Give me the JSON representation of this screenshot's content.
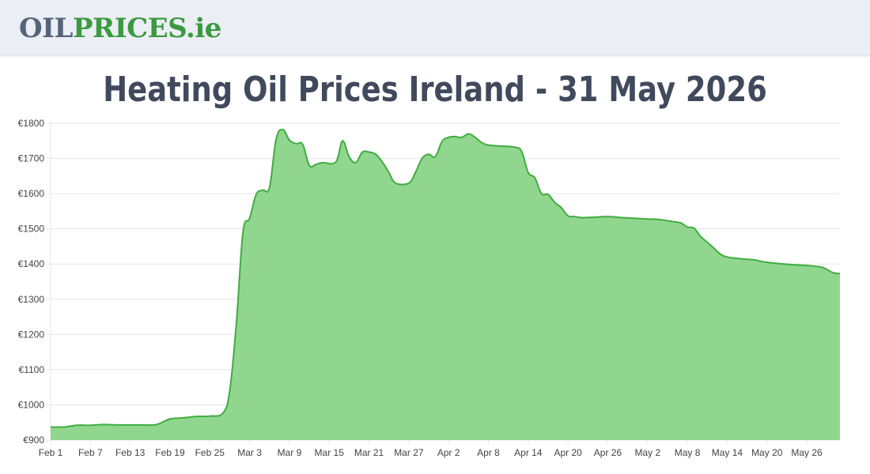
{
  "header": {
    "logo_oil": "OIL",
    "logo_prices": "PRICES",
    "logo_ie": ".ie"
  },
  "page": {
    "title": "Heating Oil Prices Ireland - 31 May 2026"
  },
  "colors": {
    "line": "#41ac41",
    "fill": "#90d68f",
    "grid": "#e6e6e6",
    "axis_text": "#444444"
  },
  "chart_data": {
    "type": "area",
    "title": "",
    "xlabel": "",
    "ylabel": "",
    "ylim": [
      900,
      1800
    ],
    "yticks": [
      900,
      1000,
      1100,
      1200,
      1300,
      1400,
      1500,
      1600,
      1700,
      1800
    ],
    "ytick_prefix": "€",
    "xtick_labels": [
      "Feb 1",
      "Feb 7",
      "Feb 13",
      "Feb 19",
      "Feb 25",
      "Mar 3",
      "Mar 9",
      "Mar 15",
      "Mar 21",
      "Mar 27",
      "Apr 2",
      "Apr 8",
      "Apr 14",
      "Apr 20",
      "Apr 26",
      "May 2",
      "May 8",
      "May 14",
      "May 20",
      "May 26"
    ],
    "grid": true,
    "legend": "none",
    "series": [
      {
        "x": [
          "2026-02-01",
          "2026-02-03",
          "2026-02-05",
          "2026-02-07",
          "2026-02-09",
          "2026-02-11",
          "2026-02-13",
          "2026-02-15",
          "2026-02-17",
          "2026-02-19",
          "2026-02-21",
          "2026-02-23",
          "2026-02-25",
          "2026-02-27",
          "2026-02-28",
          "2026-03-01",
          "2026-03-02",
          "2026-03-03",
          "2026-03-04",
          "2026-03-05",
          "2026-03-06",
          "2026-03-07",
          "2026-03-08",
          "2026-03-09",
          "2026-03-10",
          "2026-03-11",
          "2026-03-12",
          "2026-03-13",
          "2026-03-14",
          "2026-03-16",
          "2026-03-17",
          "2026-03-18",
          "2026-03-19",
          "2026-03-20",
          "2026-03-21",
          "2026-03-22",
          "2026-03-23",
          "2026-03-24",
          "2026-03-25",
          "2026-03-27",
          "2026-03-28",
          "2026-03-29",
          "2026-03-30",
          "2026-03-31",
          "2026-04-01",
          "2026-04-02",
          "2026-04-03",
          "2026-04-04",
          "2026-04-05",
          "2026-04-06",
          "2026-04-07",
          "2026-04-08",
          "2026-04-10",
          "2026-04-12",
          "2026-04-13",
          "2026-04-14",
          "2026-04-15",
          "2026-04-16",
          "2026-04-17",
          "2026-04-18",
          "2026-04-19",
          "2026-04-20",
          "2026-04-21",
          "2026-04-22",
          "2026-04-24",
          "2026-04-26",
          "2026-04-28",
          "2026-04-30",
          "2026-05-02",
          "2026-05-04",
          "2026-05-06",
          "2026-05-07",
          "2026-05-08",
          "2026-05-09",
          "2026-05-10",
          "2026-05-11",
          "2026-05-12",
          "2026-05-13",
          "2026-05-14",
          "2026-05-16",
          "2026-05-18",
          "2026-05-19",
          "2026-05-20",
          "2026-05-22",
          "2026-05-24",
          "2026-05-26",
          "2026-05-28",
          "2026-05-29",
          "2026-05-30",
          "2026-05-31"
        ],
        "values": [
          937,
          937,
          942,
          942,
          944,
          943,
          943,
          943,
          944,
          960,
          963,
          967,
          968,
          977,
          1040,
          1230,
          1490,
          1530,
          1598,
          1610,
          1618,
          1755,
          1782,
          1752,
          1742,
          1740,
          1680,
          1683,
          1688,
          1690,
          1750,
          1705,
          1688,
          1718,
          1718,
          1712,
          1690,
          1660,
          1630,
          1630,
          1660,
          1700,
          1712,
          1705,
          1748,
          1760,
          1762,
          1760,
          1770,
          1760,
          1745,
          1738,
          1735,
          1732,
          1720,
          1660,
          1645,
          1600,
          1598,
          1575,
          1560,
          1537,
          1535,
          1532,
          1533,
          1535,
          1532,
          1530,
          1528,
          1526,
          1520,
          1517,
          1505,
          1502,
          1478,
          1462,
          1445,
          1428,
          1420,
          1415,
          1412,
          1408,
          1405,
          1401,
          1398,
          1396,
          1392,
          1385,
          1375,
          1373
        ]
      }
    ]
  }
}
